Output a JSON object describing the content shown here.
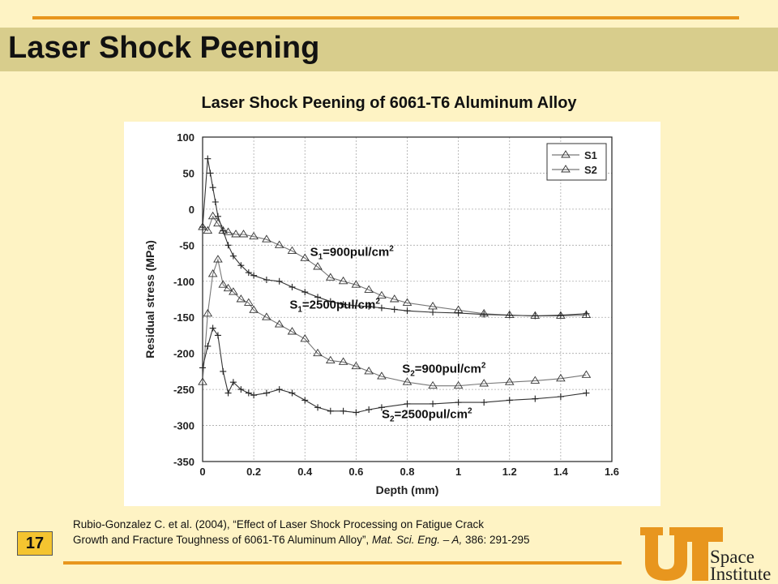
{
  "slide": {
    "title": "Laser Shock Peening",
    "page_number": "17",
    "citation_line1": "Rubio-Gonzalez C. et al. (2004), “Effect of Laser Shock Processing on Fatigue Crack",
    "citation_line2_plain": "Growth and Fracture Toughness of 6061-T6 Aluminum Alloy”, ",
    "citation_journal": "Mat. Sci. Eng. – A,",
    "citation_pages": " 386: 291-295",
    "logo_line1": "Space",
    "logo_line2": "Institute",
    "colors": {
      "accent": "#e8961e",
      "band": "#d8cd8c",
      "background": "#fef3c4",
      "badge": "#f4c430",
      "logo": "#e8961e"
    }
  },
  "chart_data": {
    "type": "line",
    "title": "Laser Shock Peening of 6061-T6 Aluminum Alloy",
    "xlabel": "Depth (mm)",
    "ylabel": "Residual stress (MPa)",
    "xlim": [
      0,
      1.6
    ],
    "ylim": [
      -350,
      100
    ],
    "x_ticks": [
      "0",
      "0.2",
      "0.4",
      "0.6",
      "0.8",
      "1",
      "1.2",
      "1.4",
      "1.6"
    ],
    "y_ticks": [
      "100",
      "50",
      "0",
      "-50",
      "-100",
      "-150",
      "-200",
      "-250",
      "-300",
      "-350"
    ],
    "grid": true,
    "legend": {
      "position": "top-right",
      "entries": [
        "S1",
        "S2"
      ]
    },
    "annotations": [
      {
        "text": "S1=900pul/cm2",
        "main": "S",
        "sub": "1",
        "mid": "=900pul/cm",
        "sup": "2",
        "x": 0.42,
        "y": -65
      },
      {
        "text": "S1=2500pul/cm2",
        "main": "S",
        "sub": "1",
        "mid": "=2500pul/cm",
        "sup": "2",
        "x": 0.34,
        "y": -138
      },
      {
        "text": "S2=900pul/cm2",
        "main": "S",
        "sub": "2",
        "mid": "=900pul/cm",
        "sup": "2",
        "x": 0.78,
        "y": -227
      },
      {
        "text": "S2=2500pul/cm2",
        "main": "S",
        "sub": "2",
        "mid": "=2500pul/cm",
        "sup": "2",
        "x": 0.7,
        "y": -290
      }
    ],
    "series": [
      {
        "marker": "triangle",
        "x": [
          0,
          0.02,
          0.04,
          0.06,
          0.08,
          0.1,
          0.13,
          0.16,
          0.2,
          0.25,
          0.3,
          0.35,
          0.4,
          0.45,
          0.5,
          0.55,
          0.6,
          0.65,
          0.7,
          0.75,
          0.8,
          0.9,
          1.0,
          1.1,
          1.2,
          1.3,
          1.4,
          1.5
        ],
        "y": [
          -25,
          -30,
          -10,
          -20,
          -30,
          -32,
          -35,
          -35,
          -38,
          -42,
          -50,
          -58,
          -68,
          -80,
          -95,
          -100,
          -105,
          -112,
          -120,
          -125,
          -130,
          -135,
          -140,
          -145,
          -147,
          -148,
          -148,
          -147
        ]
      },
      {
        "marker": "plus",
        "x": [
          0,
          0.02,
          0.03,
          0.04,
          0.05,
          0.06,
          0.08,
          0.1,
          0.12,
          0.15,
          0.18,
          0.2,
          0.25,
          0.3,
          0.35,
          0.4,
          0.45,
          0.5,
          0.55,
          0.6,
          0.65,
          0.7,
          0.75,
          0.8,
          0.9,
          1.0,
          1.1,
          1.2,
          1.3,
          1.4,
          1.5
        ],
        "y": [
          -25,
          70,
          50,
          30,
          10,
          -10,
          -30,
          -50,
          -65,
          -78,
          -88,
          -92,
          -98,
          -100,
          -108,
          -115,
          -122,
          -128,
          -132,
          -134,
          -135,
          -137,
          -139,
          -141,
          -143,
          -144,
          -146,
          -147,
          -148,
          -147,
          -145
        ]
      },
      {
        "marker": "triangle",
        "x": [
          0,
          0.02,
          0.04,
          0.06,
          0.08,
          0.1,
          0.12,
          0.15,
          0.18,
          0.2,
          0.25,
          0.3,
          0.35,
          0.4,
          0.45,
          0.5,
          0.55,
          0.6,
          0.65,
          0.7,
          0.8,
          0.9,
          1.0,
          1.1,
          1.2,
          1.3,
          1.4,
          1.5
        ],
        "y": [
          -240,
          -145,
          -90,
          -70,
          -105,
          -110,
          -115,
          -125,
          -130,
          -140,
          -150,
          -160,
          -170,
          -180,
          -200,
          -210,
          -212,
          -218,
          -225,
          -232,
          -240,
          -245,
          -245,
          -242,
          -240,
          -238,
          -235,
          -230
        ]
      },
      {
        "marker": "plus",
        "x": [
          0,
          0.02,
          0.04,
          0.06,
          0.08,
          0.1,
          0.12,
          0.15,
          0.18,
          0.2,
          0.25,
          0.3,
          0.35,
          0.4,
          0.45,
          0.5,
          0.55,
          0.6,
          0.65,
          0.7,
          0.8,
          0.9,
          1.0,
          1.1,
          1.2,
          1.3,
          1.4,
          1.5
        ],
        "y": [
          -220,
          -190,
          -165,
          -175,
          -225,
          -255,
          -240,
          -250,
          -255,
          -258,
          -255,
          -250,
          -255,
          -265,
          -275,
          -280,
          -280,
          -282,
          -278,
          -275,
          -270,
          -270,
          -268,
          -268,
          -265,
          -263,
          -260,
          -255
        ]
      }
    ]
  }
}
